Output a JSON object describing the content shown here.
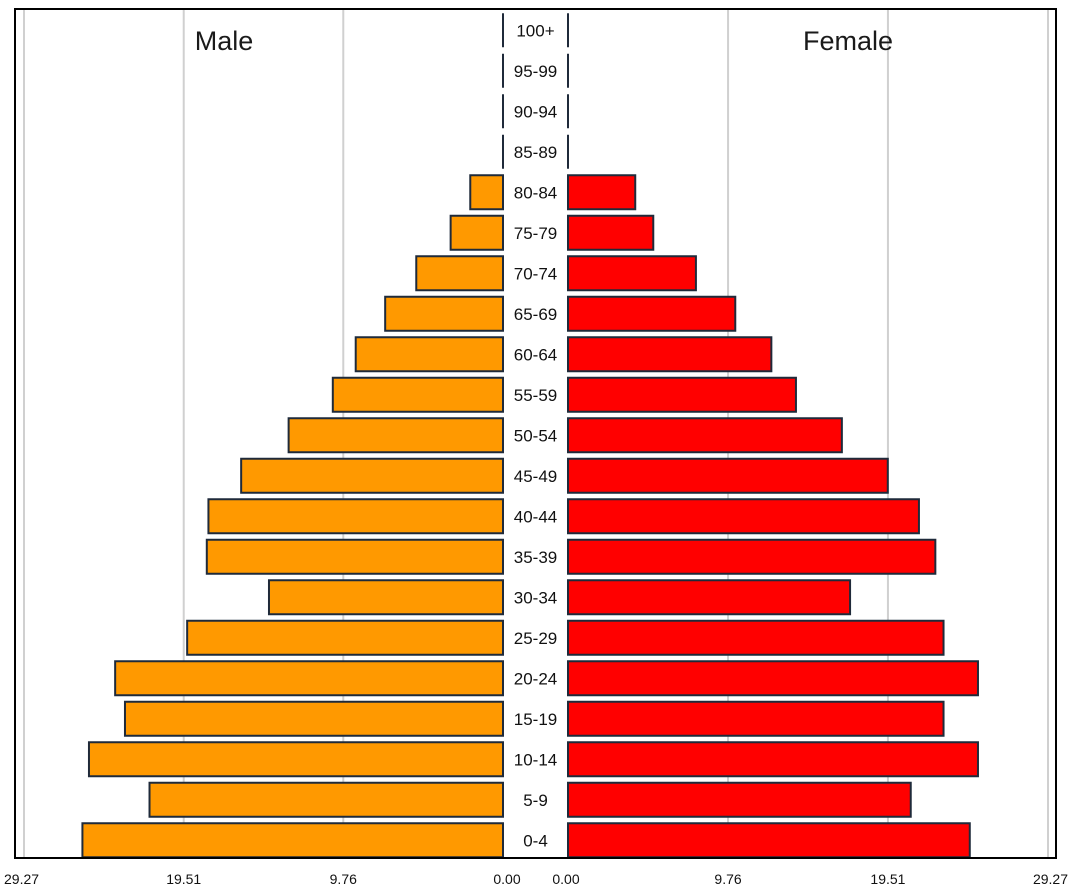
{
  "chart_data": {
    "type": "bar",
    "layout": "population-pyramid",
    "title": "",
    "panels": {
      "left": "Male",
      "right": "Female"
    },
    "categories": [
      "100+",
      "95-99",
      "90-94",
      "85-89",
      "80-84",
      "75-79",
      "70-74",
      "65-69",
      "60-64",
      "55-59",
      "50-54",
      "45-49",
      "40-44",
      "35-39",
      "30-34",
      "25-29",
      "20-24",
      "15-19",
      "10-14",
      "5-9",
      "0-4"
    ],
    "series": [
      {
        "name": "Male",
        "color": "#ff9900",
        "values": [
          0.0,
          0.0,
          0.0,
          0.0,
          2.0,
          3.2,
          5.3,
          7.2,
          9.0,
          10.4,
          13.1,
          16.0,
          18.0,
          18.1,
          14.3,
          19.3,
          23.7,
          23.1,
          25.3,
          21.6,
          25.7
        ]
      },
      {
        "name": "Female",
        "color": "#ff0000",
        "values": [
          0.0,
          0.0,
          0.0,
          0.0,
          4.1,
          5.2,
          7.8,
          10.2,
          12.4,
          13.9,
          16.7,
          19.5,
          21.4,
          22.4,
          17.2,
          22.9,
          25.0,
          22.9,
          25.0,
          20.9,
          24.5
        ]
      }
    ],
    "xaxis": {
      "left_ticks": [
        "29.27",
        "19.51",
        "9.76",
        "0.00"
      ],
      "right_ticks": [
        "0.00",
        "9.76",
        "19.51",
        "29.27"
      ],
      "tick_values": [
        29.27,
        19.51,
        9.76,
        0.0
      ],
      "xlim": [
        0,
        29.27
      ]
    },
    "grid": true,
    "colors": {
      "male": "#ff9900",
      "female": "#ff0000",
      "bar_outline": "#1f2a3a",
      "gridline": "#d0d0d0",
      "frame": "#000000"
    }
  }
}
